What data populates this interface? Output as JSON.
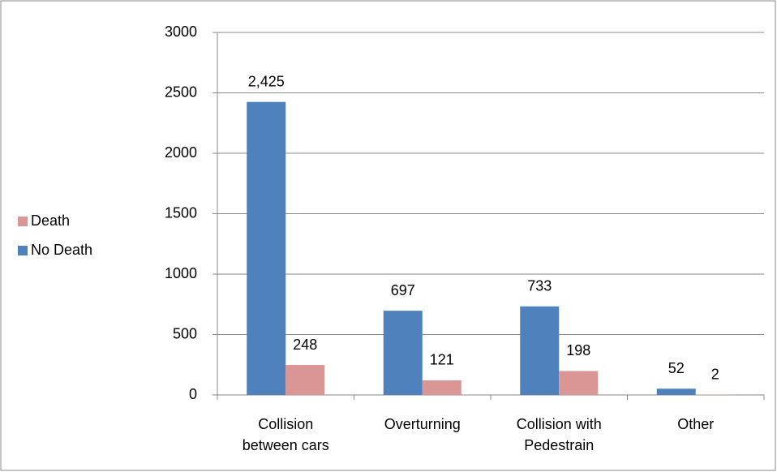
{
  "chart_data": {
    "type": "bar",
    "categories": [
      "Collision between cars",
      "Overturning",
      "Collision with Pedestrain",
      "Other"
    ],
    "series": [
      {
        "name": "No Death",
        "color": "#4f81bd",
        "values": [
          2425,
          697,
          733,
          52
        ],
        "value_labels": [
          "2,425",
          "697",
          "733",
          "52"
        ]
      },
      {
        "name": "Death",
        "color": "#d99694",
        "values": [
          248,
          121,
          198,
          2
        ]
      }
    ],
    "ylim": [
      0,
      3000
    ],
    "yticks": [
      0,
      500,
      1000,
      1500,
      2000,
      2500,
      3000
    ],
    "grid": true,
    "legend": "left"
  }
}
